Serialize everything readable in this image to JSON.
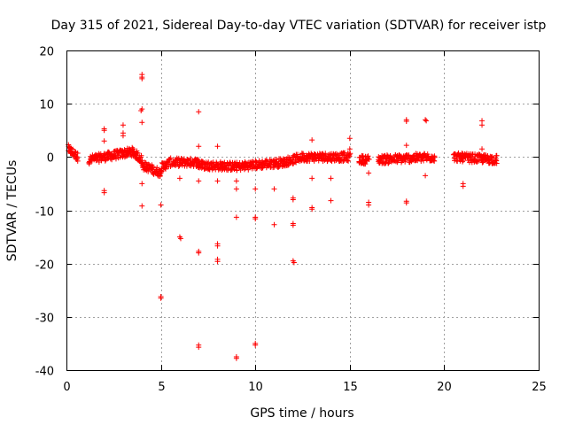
{
  "chart_data": {
    "type": "scatter",
    "title": "Day 315 of 2021, Sidereal Day-to-day VTEC variation (SDTVAR) for receiver istp",
    "xlabel": "GPS time / hours",
    "ylabel": "SDTVAR / TECUs",
    "xlim": [
      0,
      25
    ],
    "ylim": [
      -40,
      20
    ],
    "xticks": [
      0,
      5,
      10,
      15,
      20,
      25
    ],
    "xtick_labels": [
      "0",
      "5",
      "10",
      "15",
      "20",
      "25"
    ],
    "yticks": [
      -40,
      -30,
      -20,
      -10,
      0,
      10,
      20
    ],
    "ytick_labels": [
      "-40",
      "-30",
      "-20",
      "-10",
      "0",
      "10",
      "20"
    ],
    "grid": true,
    "marker": "+",
    "color": "#ff0000",
    "band_segments": [
      {
        "x": [
          0.1,
          0.6
        ],
        "y": [
          1.5,
          0.0
        ]
      },
      {
        "x": [
          1.2,
          3.5
        ],
        "y": [
          -0.5,
          1.0
        ]
      },
      {
        "x": [
          3.5,
          4.0
        ],
        "y": [
          1.0,
          -0.5
        ]
      },
      {
        "x": [
          4.0,
          5.0
        ],
        "y": [
          -1.5,
          -3.0
        ]
      },
      {
        "x": [
          5.0,
          5.5
        ],
        "y": [
          -2.0,
          -1.0
        ]
      },
      {
        "x": [
          5.6,
          7.0
        ],
        "y": [
          -1.0,
          -1.0
        ]
      },
      {
        "x": [
          7.0,
          9.0
        ],
        "y": [
          -1.5,
          -1.8
        ]
      },
      {
        "x": [
          9.0,
          11.5
        ],
        "y": [
          -1.8,
          -1.0
        ]
      },
      {
        "x": [
          11.5,
          12.5
        ],
        "y": [
          -1.0,
          0.0
        ]
      },
      {
        "x": [
          12.5,
          15.0
        ],
        "y": [
          0.0,
          0.0
        ]
      },
      {
        "x": [
          15.5,
          16.0
        ],
        "y": [
          -0.5,
          -0.5
        ]
      },
      {
        "x": [
          16.5,
          19.5
        ],
        "y": [
          -0.5,
          0.0
        ]
      },
      {
        "x": [
          20.5,
          22.8
        ],
        "y": [
          0.0,
          -0.5
        ]
      }
    ],
    "outliers": [
      {
        "x": 4.0,
        "y": 15.5
      },
      {
        "x": 4.0,
        "y": 15.0
      },
      {
        "x": 4.0,
        "y": 14.7
      },
      {
        "x": 4.0,
        "y": 9.0
      },
      {
        "x": 3.95,
        "y": 8.7
      },
      {
        "x": 4.0,
        "y": 6.5
      },
      {
        "x": 7.0,
        "y": 8.5
      },
      {
        "x": 18.0,
        "y": 7.0
      },
      {
        "x": 18.0,
        "y": 6.7
      },
      {
        "x": 19.0,
        "y": 7.0
      },
      {
        "x": 19.05,
        "y": 6.8
      },
      {
        "x": 22.0,
        "y": 6.0
      },
      {
        "x": 22.0,
        "y": 6.8
      },
      {
        "x": 3.0,
        "y": 6.0
      },
      {
        "x": 3.0,
        "y": 4.5
      },
      {
        "x": 3.0,
        "y": 4.0
      },
      {
        "x": 2.0,
        "y": 5.3
      },
      {
        "x": 2.0,
        "y": 5.0
      },
      {
        "x": 2.0,
        "y": 3.0
      },
      {
        "x": 13.0,
        "y": 3.2
      },
      {
        "x": 15.0,
        "y": 3.5
      },
      {
        "x": 15.0,
        "y": 1.5
      },
      {
        "x": 8.0,
        "y": 2.0
      },
      {
        "x": 7.0,
        "y": 2.0
      },
      {
        "x": 22.0,
        "y": 1.5
      },
      {
        "x": 18.0,
        "y": 2.2
      },
      {
        "x": 4.0,
        "y": -5.0
      },
      {
        "x": 2.0,
        "y": -6.3
      },
      {
        "x": 2.0,
        "y": -6.7
      },
      {
        "x": 6.0,
        "y": -4.0
      },
      {
        "x": 7.0,
        "y": -4.5
      },
      {
        "x": 8.0,
        "y": -4.5
      },
      {
        "x": 9.0,
        "y": -4.5
      },
      {
        "x": 9.0,
        "y": -6.0
      },
      {
        "x": 10.0,
        "y": -6.0
      },
      {
        "x": 11.0,
        "y": -6.0
      },
      {
        "x": 13.0,
        "y": -4.0
      },
      {
        "x": 14.0,
        "y": -4.0
      },
      {
        "x": 12.0,
        "y": -8.0
      },
      {
        "x": 12.0,
        "y": -7.7
      },
      {
        "x": 14.0,
        "y": -8.2
      },
      {
        "x": 16.0,
        "y": -8.5
      },
      {
        "x": 16.0,
        "y": -9.0
      },
      {
        "x": 18.0,
        "y": -8.3
      },
      {
        "x": 18.0,
        "y": -8.6
      },
      {
        "x": 21.0,
        "y": -5.5
      },
      {
        "x": 21.0,
        "y": -5.0
      },
      {
        "x": 19.0,
        "y": -3.5
      },
      {
        "x": 16.0,
        "y": -3.0
      },
      {
        "x": 4.0,
        "y": -9.2
      },
      {
        "x": 5.0,
        "y": -9.0
      },
      {
        "x": 13.0,
        "y": -9.5
      },
      {
        "x": 13.0,
        "y": -9.8
      },
      {
        "x": 9.0,
        "y": -11.3
      },
      {
        "x": 10.0,
        "y": -11.3
      },
      {
        "x": 10.0,
        "y": -11.6
      },
      {
        "x": 11.0,
        "y": -12.7
      },
      {
        "x": 12.0,
        "y": -12.5
      },
      {
        "x": 12.0,
        "y": -12.8
      },
      {
        "x": 6.0,
        "y": -15.0
      },
      {
        "x": 6.05,
        "y": -15.3
      },
      {
        "x": 8.0,
        "y": -16.7
      },
      {
        "x": 8.0,
        "y": -16.3
      },
      {
        "x": 7.0,
        "y": -17.7
      },
      {
        "x": 7.0,
        "y": -18.0
      },
      {
        "x": 8.0,
        "y": -19.2
      },
      {
        "x": 8.0,
        "y": -19.6
      },
      {
        "x": 12.0,
        "y": -19.5
      },
      {
        "x": 12.05,
        "y": -19.8
      },
      {
        "x": 5.0,
        "y": -26.2
      },
      {
        "x": 5.0,
        "y": -26.5
      },
      {
        "x": 10.0,
        "y": -35.0
      },
      {
        "x": 10.0,
        "y": -35.3
      },
      {
        "x": 7.0,
        "y": -35.3
      },
      {
        "x": 7.0,
        "y": -35.7
      },
      {
        "x": 9.0,
        "y": -37.5
      },
      {
        "x": 9.0,
        "y": -37.8
      }
    ]
  }
}
